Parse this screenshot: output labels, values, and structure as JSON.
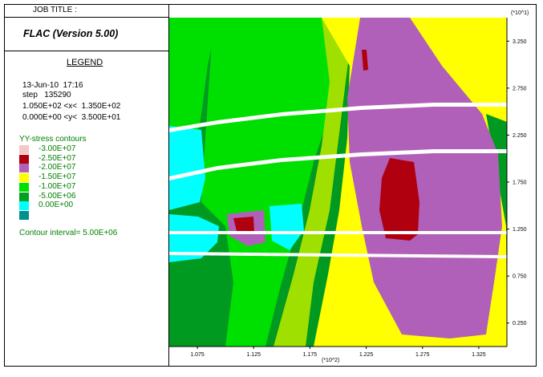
{
  "header": {
    "job_title": "JOB TITLE :",
    "program": "FLAC (Version 5.00)"
  },
  "legend": {
    "title": "LEGEND",
    "date": "13-Jun-10  17:16",
    "step": "step   135290",
    "x_range": "1.050E+02 <x<  1.350E+02",
    "y_range": "0.000E+00 <y<  3.500E+01"
  },
  "contours": {
    "title": "YY-stress contours",
    "levels": [
      {
        "label": "-3.00E+07",
        "color": "#f2c8c8"
      },
      {
        "label": "-2.50E+07",
        "color": "#b00010"
      },
      {
        "label": "-2.00E+07",
        "color": "#b060b8"
      },
      {
        "label": "-1.50E+07",
        "color": "#ffff00"
      },
      {
        "label": "-1.00E+07",
        "color": "#00e000"
      },
      {
        "label": "-5.00E+06",
        "color": "#00a020"
      },
      {
        "label": " 0.00E+00",
        "color": "#00ffff"
      },
      {
        "label": "",
        "color": "#009090"
      }
    ],
    "interval": "Contour interval=  5.00E+06"
  },
  "chart_data": {
    "type": "heatmap",
    "x_multiplier": "(*10^2)",
    "y_multiplier": "(*10^1)",
    "xlim": [
      1.05,
      1.35
    ],
    "ylim": [
      0.0,
      3.5
    ],
    "x_ticks": [
      "1.075",
      "1.125",
      "1.175",
      "1.225",
      "1.275",
      "1.325"
    ],
    "y_ticks": [
      "0.250",
      "0.750",
      "1.250",
      "1.750",
      "2.250",
      "2.750",
      "3.250"
    ]
  }
}
